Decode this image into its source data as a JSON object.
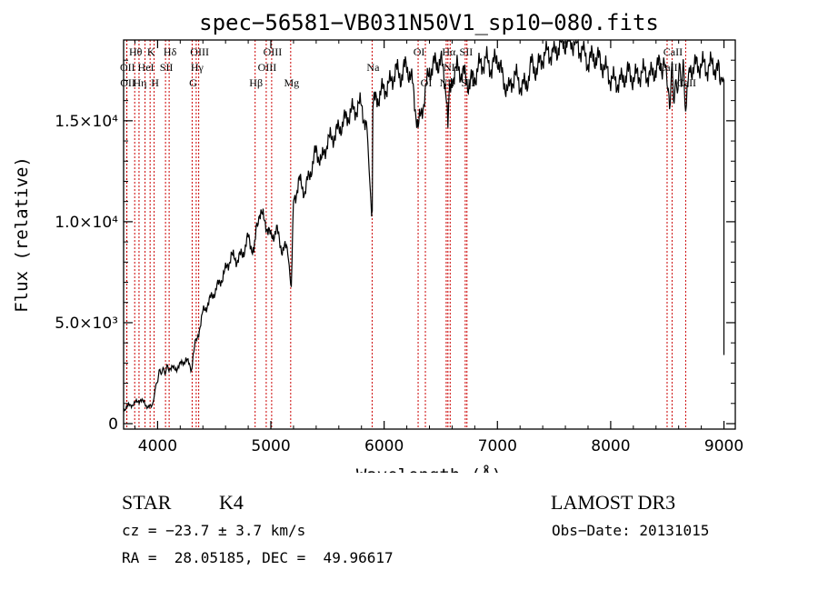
{
  "chart_data": {
    "type": "line",
    "title": "spec−56581−VB031N50V1_sp10−080.fits",
    "xlabel": "Wavelength (Å)",
    "ylabel": "Flux (relative)",
    "xlim": [
      3700,
      9100
    ],
    "ylim": [
      0,
      19000
    ],
    "xticks": [
      {
        "value": 4000,
        "label": "4000"
      },
      {
        "value": 5000,
        "label": "5000"
      },
      {
        "value": 6000,
        "label": "6000"
      },
      {
        "value": 7000,
        "label": "7000"
      },
      {
        "value": 8000,
        "label": "8000"
      },
      {
        "value": 9000,
        "label": "9000"
      }
    ],
    "yticks": [
      {
        "value": 0,
        "label": "0"
      },
      {
        "value": 5000,
        "label": "5.0×10³"
      },
      {
        "value": 10000,
        "label": "1.0×10⁴"
      },
      {
        "value": 15000,
        "label": "1.5×10⁴"
      }
    ],
    "series": [
      {
        "name": "flux",
        "x": [
          3700,
          3750,
          3800,
          3850,
          3900,
          3950,
          3990,
          4020,
          4060,
          4100,
          4150,
          4200,
          4250,
          4300,
          4320,
          4350,
          4400,
          4450,
          4500,
          4550,
          4600,
          4650,
          4700,
          4750,
          4800,
          4850,
          4870,
          4900,
          4950,
          5000,
          5050,
          5100,
          5150,
          5180,
          5200,
          5250,
          5300,
          5350,
          5400,
          5450,
          5500,
          5550,
          5600,
          5650,
          5700,
          5750,
          5800,
          5850,
          5890,
          5895,
          5900,
          5950,
          6000,
          6050,
          6100,
          6150,
          6200,
          6250,
          6300,
          6350,
          6400,
          6450,
          6500,
          6550,
          6563,
          6580,
          6600,
          6650,
          6700,
          6750,
          6800,
          6850,
          6900,
          6950,
          7000,
          7050,
          7100,
          7150,
          7200,
          7250,
          7300,
          7350,
          7400,
          7450,
          7500,
          7550,
          7600,
          7650,
          7700,
          7750,
          7800,
          7850,
          7900,
          7950,
          8000,
          8050,
          8100,
          8150,
          8200,
          8250,
          8300,
          8350,
          8400,
          8450,
          8498,
          8520,
          8542,
          8560,
          8600,
          8640,
          8662,
          8700,
          8750,
          8800,
          8850,
          8900,
          8950,
          8980,
          9000
        ],
        "y": [
          700,
          900,
          1000,
          1200,
          900,
          800,
          2000,
          2600,
          2600,
          2800,
          2700,
          2900,
          3200,
          2700,
          3800,
          4200,
          5500,
          6000,
          6500,
          7000,
          7600,
          8300,
          8100,
          8400,
          9200,
          8500,
          9400,
          10500,
          10000,
          9200,
          9600,
          8600,
          8700,
          6500,
          11000,
          12000,
          11500,
          12500,
          13500,
          13000,
          14000,
          14200,
          14600,
          15000,
          15400,
          15600,
          15800,
          14400,
          10300,
          11000,
          15800,
          16200,
          16600,
          16800,
          17500,
          17200,
          17800,
          16800,
          14600,
          16000,
          17500,
          17800,
          18000,
          16500,
          15000,
          16600,
          17200,
          17600,
          17300,
          16800,
          17200,
          17800,
          18000,
          17600,
          18200,
          17000,
          16500,
          17300,
          16800,
          16700,
          17800,
          17500,
          18200,
          18400,
          18300,
          18800,
          18900,
          19000,
          18700,
          18500,
          17900,
          18200,
          18000,
          17600,
          17100,
          16900,
          17000,
          17400,
          17100,
          17300,
          17400,
          17200,
          17600,
          17800,
          17400,
          15800,
          17300,
          16200,
          17200,
          17400,
          15500,
          17600,
          17700,
          17800,
          17600,
          17800,
          17400,
          17200,
          17000
        ]
      }
    ],
    "lines": [
      {
        "name": "OII",
        "x": 3727,
        "row": 2
      },
      {
        "name": "OII",
        "x": 3729,
        "row": 3
      },
      {
        "name": "Hθ",
        "x": 3798,
        "row": 1
      },
      {
        "name": "Hη",
        "x": 3836,
        "row": 3
      },
      {
        "name": "HeI",
        "x": 3889,
        "row": 2
      },
      {
        "name": "K",
        "x": 3934,
        "row": 1
      },
      {
        "name": "H",
        "x": 3969,
        "row": 3
      },
      {
        "name": "SII",
        "x": 4070,
        "row": 2
      },
      {
        "name": "Hδ",
        "x": 4102,
        "row": 1
      },
      {
        "name": "G",
        "x": 4305,
        "row": 3
      },
      {
        "name": "Hγ",
        "x": 4341,
        "row": 2
      },
      {
        "name": "OIII",
        "x": 4363,
        "row": 1
      },
      {
        "name": "Hβ",
        "x": 4861,
        "row": 3
      },
      {
        "name": "OIII",
        "x": 4959,
        "row": 2
      },
      {
        "name": "OIII",
        "x": 5007,
        "row": 1
      },
      {
        "name": "Mg",
        "x": 5175,
        "row": 3
      },
      {
        "name": "Na",
        "x": 5894,
        "row": 2
      },
      {
        "name": "OI",
        "x": 6300,
        "row": 1
      },
      {
        "name": "OI",
        "x": 6364,
        "row": 3
      },
      {
        "name": "NII",
        "x": 6548,
        "row": 3
      },
      {
        "name": "Hα",
        "x": 6563,
        "row": 1
      },
      {
        "name": "NII",
        "x": 6583,
        "row": 2
      },
      {
        "name": "SII",
        "x": 6716,
        "row": 1
      },
      {
        "name": "SII",
        "x": 6731,
        "row": 3
      },
      {
        "name": "CaII",
        "x": 8498,
        "row": 2
      },
      {
        "name": "CaII",
        "x": 8542,
        "row": 1
      },
      {
        "name": "CaII",
        "x": 8662,
        "row": 3
      }
    ]
  },
  "info": {
    "object_class": "STAR",
    "subclass": "K4",
    "survey": "LAMOST DR3",
    "cz": "cz = −23.7 ± 3.7 km/s",
    "obs_date": "Obs−Date: 20131015",
    "coords": "RA =  28.05185, DEC =  49.96617"
  }
}
